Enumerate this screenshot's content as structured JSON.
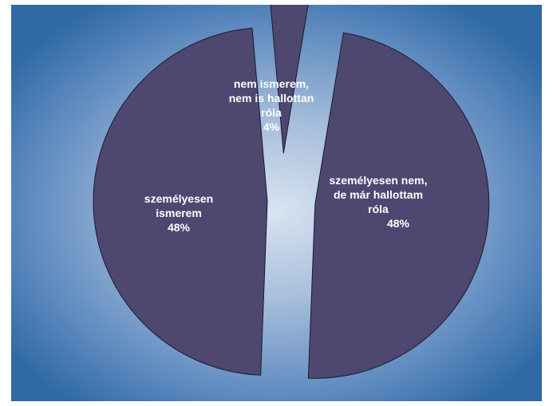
{
  "chart_data": {
    "type": "pie",
    "exploded": true,
    "background": "radial-gradient-blue",
    "slices": [
      {
        "label_lines": [
          "nem ismerem,",
          "nem is hallottan",
          "róla",
          "4%"
        ],
        "value": 4,
        "color": "#4e4870"
      },
      {
        "label_lines": [
          "személyesen nem,",
          "de már hallottam",
          "róla",
          "48%"
        ],
        "value": 48,
        "color": "#4e4870"
      },
      {
        "label_lines": [
          "személyesen",
          "ismerem",
          "48%"
        ],
        "value": 48,
        "color": "#4e4870"
      }
    ]
  },
  "colors": {
    "background_edge": "#2f6aa4",
    "background_center": "#d3e0ee",
    "slice_stroke": "#1a1a2e"
  }
}
